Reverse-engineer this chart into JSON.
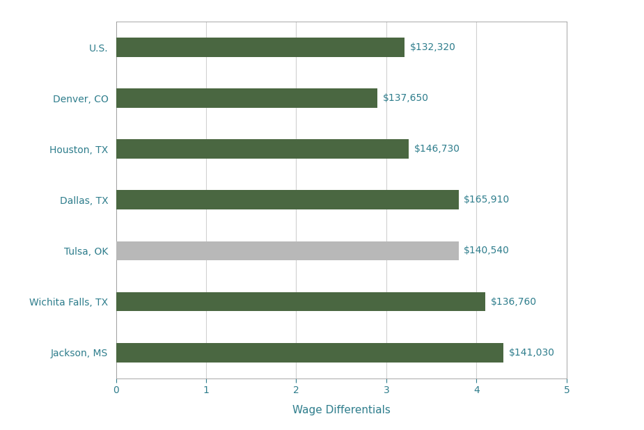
{
  "categories": [
    "Jackson, MS",
    "Wichita Falls, TX",
    "Tulsa, OK",
    "Dallas, TX",
    "Houston, TX",
    "Denver, CO",
    "U.S."
  ],
  "values": [
    4.3,
    4.1,
    3.8,
    3.8,
    3.25,
    2.9,
    3.2
  ],
  "labels": [
    "$141,030",
    "$136,760",
    "$140,540",
    "$165,910",
    "$146,730",
    "$137,650",
    "$132,320"
  ],
  "bar_colors": [
    "#4a6741",
    "#4a6741",
    "#b8b8b8",
    "#4a6741",
    "#4a6741",
    "#4a6741",
    "#4a6741"
  ],
  "xlabel": "Wage Differentials",
  "xlim": [
    0,
    5
  ],
  "xticks": [
    0,
    1,
    2,
    3,
    4,
    5
  ],
  "bar_height": 0.38,
  "label_color": "#2e7d8c",
  "ytick_color": "#2e7d8c",
  "xlabel_color": "#2e7d8c",
  "xlabel_fontsize": 11,
  "label_fontsize": 10,
  "ytick_fontsize": 10,
  "xtick_fontsize": 10,
  "bg_color": "#ffffff",
  "grid_color": "#d0d0d0",
  "spine_color": "#999999"
}
